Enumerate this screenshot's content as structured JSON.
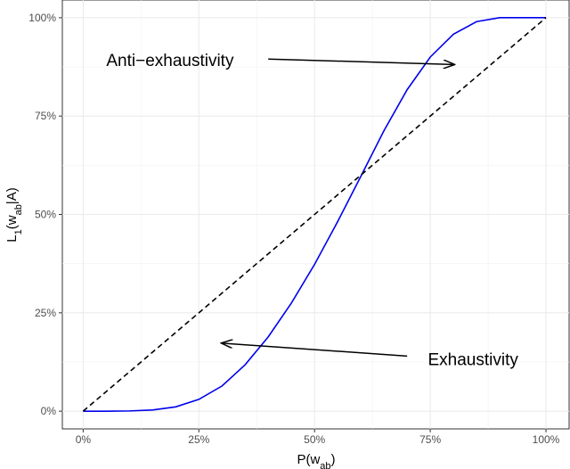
{
  "chart_data": {
    "type": "line",
    "xlabel": {
      "main": "P(w",
      "sub": "ab",
      "close": ")"
    },
    "ylabel": {
      "main": "L",
      "sub1": "1",
      "mid": "(w",
      "sub2": "ab",
      "close": "|A)"
    },
    "x_ticks": [
      "0%",
      "25%",
      "50%",
      "75%",
      "100%"
    ],
    "y_ticks": [
      "0%",
      "25%",
      "50%",
      "75%",
      "100%"
    ],
    "x_tick_values": [
      0,
      0.25,
      0.5,
      0.75,
      1
    ],
    "y_tick_values": [
      0,
      0.25,
      0.5,
      0.75,
      1
    ],
    "xlim": [
      -0.045,
      1.05
    ],
    "ylim": [
      -0.045,
      1.045
    ],
    "grid": true,
    "series": [
      {
        "style": "solid",
        "color": "#0000ee",
        "x": [
          0,
          0.05,
          0.1,
          0.15,
          0.2,
          0.25,
          0.3,
          0.35,
          0.4,
          0.45,
          0.5,
          0.55,
          0.6,
          0.65,
          0.7,
          0.75,
          0.8,
          0.85,
          0.9,
          0.95,
          1
        ],
        "y": [
          0,
          0,
          0.0006,
          0.003,
          0.011,
          0.03,
          0.064,
          0.118,
          0.189,
          0.275,
          0.373,
          0.482,
          0.597,
          0.713,
          0.817,
          0.9,
          0.958,
          0.99,
          1,
          1,
          1
        ]
      },
      {
        "style": "dashed",
        "color": "#000000",
        "x": [
          0,
          1
        ],
        "y": [
          0,
          1
        ]
      }
    ],
    "annotations": [
      {
        "text": "Anti−exhaustivity",
        "text_at": [
          0.05,
          0.893
        ],
        "arrow_from": [
          0.4,
          0.895
        ],
        "arrow_to": [
          0.803,
          0.881
        ]
      },
      {
        "text": "Exhaustivity",
        "text_at": [
          0.745,
          0.133
        ],
        "arrow_from": [
          0.7,
          0.14
        ],
        "arrow_to": [
          0.298,
          0.173
        ]
      }
    ]
  }
}
